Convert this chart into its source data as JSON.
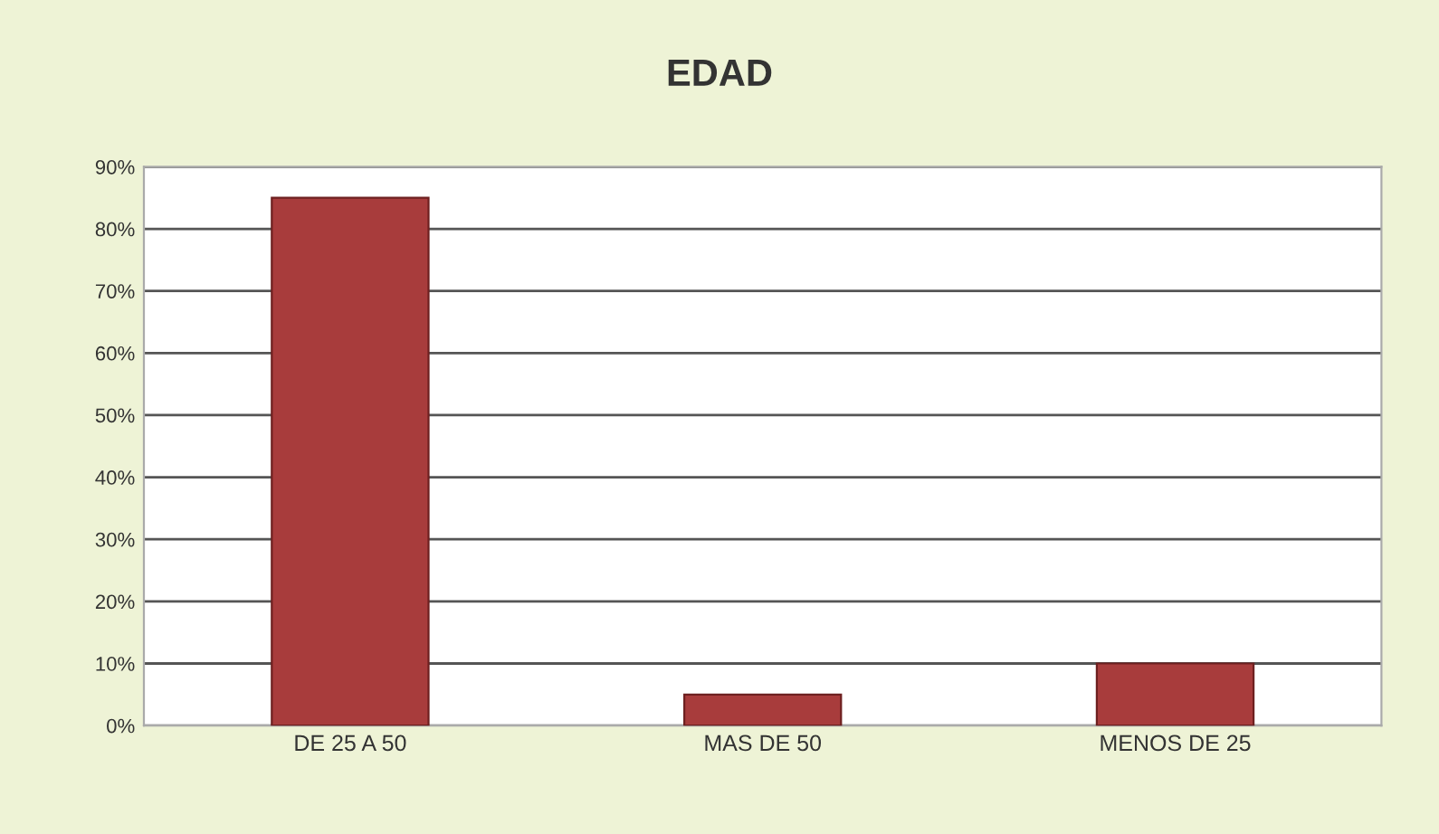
{
  "chart_data": {
    "type": "bar",
    "title": "EDAD",
    "categories": [
      "DE 25 A 50",
      "MAS DE 50",
      "MENOS DE 25"
    ],
    "values": [
      85,
      5,
      10
    ],
    "color": "#a83c3c",
    "ylim": [
      0,
      90
    ],
    "yticks": [
      {
        "value": 0,
        "label": "0%"
      },
      {
        "value": 10,
        "label": "10%"
      },
      {
        "value": 20,
        "label": "20%"
      },
      {
        "value": 30,
        "label": "30%"
      },
      {
        "value": 40,
        "label": "40%"
      },
      {
        "value": 50,
        "label": "50%"
      },
      {
        "value": 60,
        "label": "60%"
      },
      {
        "value": 70,
        "label": "70%"
      },
      {
        "value": 80,
        "label": "80%"
      },
      {
        "value": 90,
        "label": "90%"
      }
    ],
    "grid": "y"
  }
}
